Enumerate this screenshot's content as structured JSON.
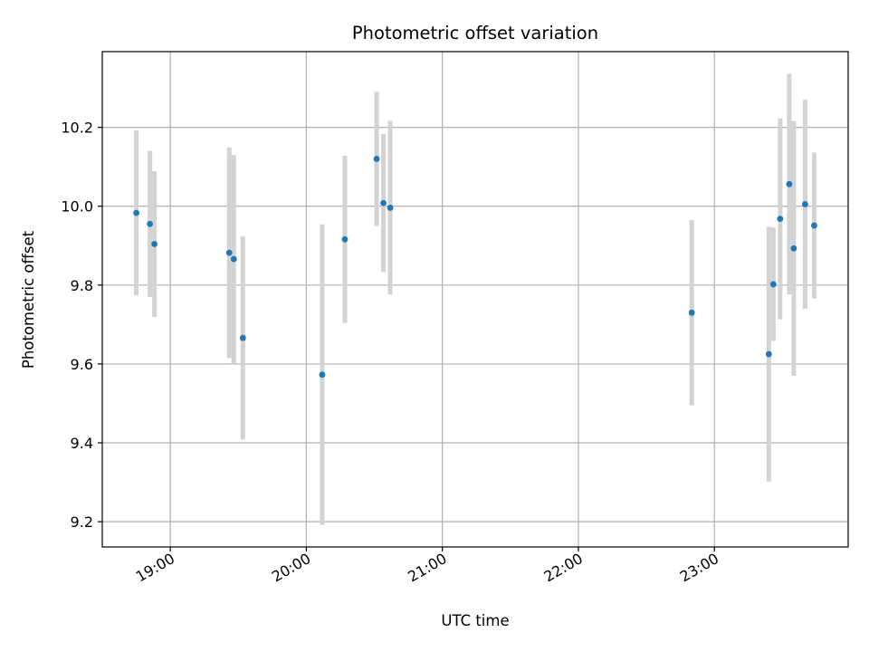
{
  "chart_data": {
    "type": "scatter",
    "title": "Photometric offset variation",
    "xlabel": "UTC time",
    "ylabel": "Photometric offset",
    "x_unit": "UTC time (hh:mm)",
    "xlim": [
      "18:30",
      "23:59"
    ],
    "ylim": [
      9.136,
      10.392
    ],
    "x_ticks": [
      "19:00",
      "20:00",
      "21:00",
      "22:00",
      "23:00"
    ],
    "y_ticks": [
      "9.2",
      "9.4",
      "9.6",
      "9.8",
      "10.0",
      "10.2"
    ],
    "grid": true,
    "point_color": "#1f77b4",
    "errorbar_color": "#d3d3d3",
    "points": [
      {
        "t": "18:45",
        "y": 9.983,
        "err": 0.209
      },
      {
        "t": "18:51",
        "y": 9.955,
        "err": 0.185
      },
      {
        "t": "18:53",
        "y": 9.904,
        "err": 0.185
      },
      {
        "t": "19:26",
        "y": 9.882,
        "err": 0.267
      },
      {
        "t": "19:28",
        "y": 9.866,
        "err": 0.264
      },
      {
        "t": "19:32",
        "y": 9.666,
        "err": 0.258
      },
      {
        "t": "20:07",
        "y": 9.573,
        "err": 0.381
      },
      {
        "t": "20:17",
        "y": 9.916,
        "err": 0.212
      },
      {
        "t": "20:31",
        "y": 10.12,
        "err": 0.17
      },
      {
        "t": "20:34",
        "y": 10.008,
        "err": 0.175
      },
      {
        "t": "20:37",
        "y": 9.996,
        "err": 0.22
      },
      {
        "t": "22:50",
        "y": 9.73,
        "err": 0.235
      },
      {
        "t": "23:24",
        "y": 9.625,
        "err": 0.323
      },
      {
        "t": "23:26",
        "y": 9.802,
        "err": 0.144
      },
      {
        "t": "23:29",
        "y": 9.968,
        "err": 0.255
      },
      {
        "t": "23:33",
        "y": 10.056,
        "err": 0.28
      },
      {
        "t": "23:35",
        "y": 9.893,
        "err": 0.323
      },
      {
        "t": "23:40",
        "y": 10.005,
        "err": 0.265
      },
      {
        "t": "23:44",
        "y": 9.951,
        "err": 0.185
      }
    ]
  }
}
